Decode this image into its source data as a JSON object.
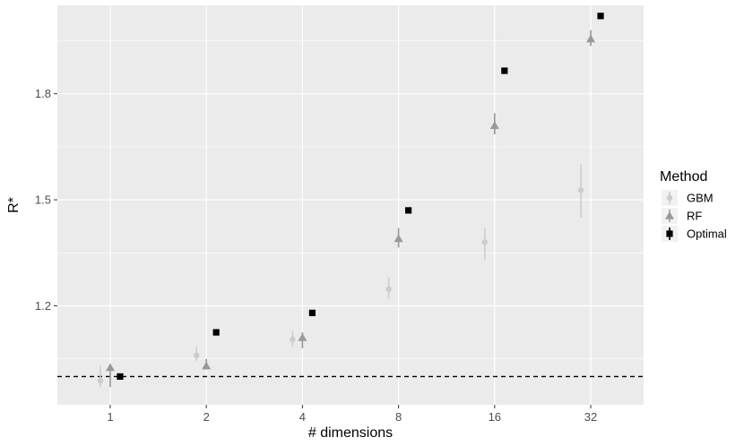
{
  "chart_data": {
    "type": "scatter",
    "xlabel": "# dimensions",
    "ylabel": "R*",
    "x_categories": [
      "1",
      "2",
      "4",
      "8",
      "16",
      "32"
    ],
    "y_ticks": [
      "1.2",
      "1.5",
      "1.8"
    ],
    "y_tick_values": [
      1.2,
      1.5,
      1.8
    ],
    "ylim": [
      0.92,
      2.05
    ],
    "reference_line_y": 1.0,
    "grid": true,
    "legend": {
      "title": "Method",
      "position": "right"
    },
    "series": [
      {
        "name": "GBM",
        "shape": "circle",
        "color": "#cccccc",
        "points": [
          {
            "x": "1",
            "y": 0.988,
            "lo": 0.97,
            "hi": 1.03
          },
          {
            "x": "2",
            "y": 1.06,
            "lo": 1.045,
            "hi": 1.085
          },
          {
            "x": "4",
            "y": 1.105,
            "lo": 1.085,
            "hi": 1.13
          },
          {
            "x": "8",
            "y": 1.247,
            "lo": 1.22,
            "hi": 1.28
          },
          {
            "x": "16",
            "y": 1.38,
            "lo": 1.33,
            "hi": 1.42
          },
          {
            "x": "32",
            "y": 1.527,
            "lo": 1.45,
            "hi": 1.6
          }
        ]
      },
      {
        "name": "RF",
        "shape": "triangle",
        "color": "#999999",
        "points": [
          {
            "x": "1",
            "y": 1.025,
            "lo": 0.97,
            "hi": 1.035
          },
          {
            "x": "2",
            "y": 1.03,
            "lo": 1.02,
            "hi": 1.05
          },
          {
            "x": "4",
            "y": 1.11,
            "lo": 1.08,
            "hi": 1.125
          },
          {
            "x": "8",
            "y": 1.39,
            "lo": 1.365,
            "hi": 1.42
          },
          {
            "x": "16",
            "y": 1.71,
            "lo": 1.685,
            "hi": 1.745
          },
          {
            "x": "32",
            "y": 1.955,
            "lo": 1.935,
            "hi": 1.98
          }
        ]
      },
      {
        "name": "Optimal",
        "shape": "square",
        "color": "#000000",
        "points": [
          {
            "x": "1",
            "y": 1.0
          },
          {
            "x": "2",
            "y": 1.125
          },
          {
            "x": "4",
            "y": 1.18
          },
          {
            "x": "8",
            "y": 1.47
          },
          {
            "x": "16",
            "y": 1.865
          },
          {
            "x": "32",
            "y": 2.02
          }
        ]
      }
    ]
  }
}
